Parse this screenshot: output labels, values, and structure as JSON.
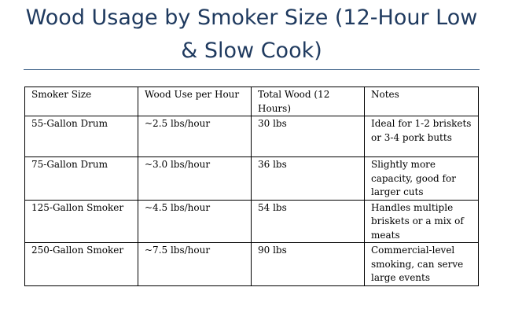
{
  "document": {
    "title": "Wood Usage by Smoker Size (12-Hour Low & Slow Cook)"
  },
  "table": {
    "headers": [
      "Smoker Size",
      "Wood Use per Hour",
      "Total Wood (12 Hours)",
      "Notes"
    ],
    "rows": [
      [
        "55-Gallon Drum",
        "~2.5 lbs/hour",
        "30 lbs",
        "Ideal for 1-2 briskets or 3-4 pork butts"
      ],
      [
        "75-Gallon Drum",
        "~3.0 lbs/hour",
        "36 lbs",
        "Slightly more capacity, good for larger cuts"
      ],
      [
        "125-Gallon Smoker",
        "~4.5 lbs/hour",
        "54 lbs",
        "Handles multiple briskets or a mix of meats"
      ],
      [
        "250-Gallon Smoker",
        "~7.5 lbs/hour",
        "90 lbs",
        "Commercial-level smoking, can serve large events"
      ]
    ]
  }
}
